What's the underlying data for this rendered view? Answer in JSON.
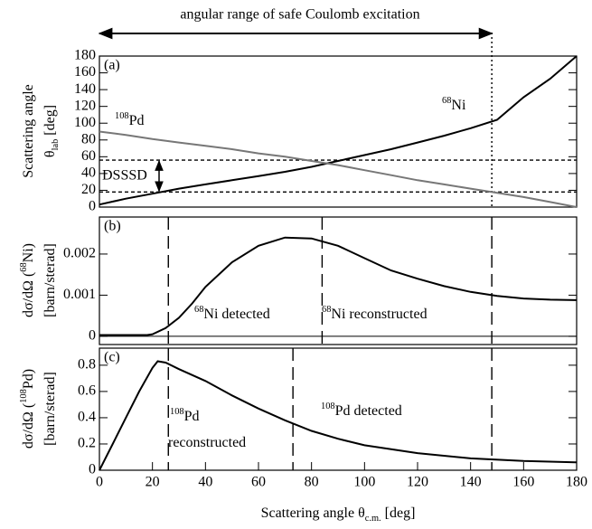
{
  "chart_data": [
    {
      "type": "line",
      "range_label": "angular range of safe Coulomb excitation",
      "range_arrow": [
        0,
        148
      ],
      "panel_label": "(a)",
      "ylabel": [
        [
          {
            "text": "Scattering angle"
          }
        ],
        [
          {
            "text": "θ"
          },
          {
            "text": "lab",
            "script": "sub"
          },
          {
            "text": " [deg]"
          }
        ]
      ],
      "xlim": [
        0,
        180
      ],
      "ylim": [
        0,
        180
      ],
      "yticks": [
        0,
        20,
        40,
        60,
        80,
        100,
        120,
        140,
        160,
        180
      ],
      "x": [
        0,
        10,
        20,
        30,
        40,
        50,
        60,
        70,
        80,
        90,
        100,
        110,
        120,
        130,
        140,
        150,
        160,
        170,
        180
      ],
      "series": [
        {
          "name": [
            {
              "text": "68",
              "script": "sup"
            },
            {
              "text": "Ni"
            }
          ],
          "color": "#000000",
          "values": [
            3,
            10,
            16,
            22,
            27,
            32,
            37,
            42,
            48,
            55,
            62,
            69,
            77,
            85,
            94,
            104,
            131,
            153,
            180
          ]
        },
        {
          "name": [
            {
              "text": "108",
              "script": "sup"
            },
            {
              "text": "Pd"
            }
          ],
          "color": "#777777",
          "values": [
            90,
            86,
            81,
            77,
            73,
            69,
            64,
            60,
            55,
            50,
            44,
            38,
            32,
            27,
            22,
            17,
            12,
            6,
            0
          ]
        }
      ],
      "hlines": [
        18,
        56
      ],
      "vlines": [
        148
      ],
      "detector_label": "DSSSD"
    },
    {
      "type": "line",
      "panel_label": "(b)",
      "ylabel": [
        [
          {
            "text": "dσ/dΩ ("
          },
          {
            "text": "68",
            "script": "sup"
          },
          {
            "text": "Ni)"
          }
        ],
        [
          {
            "text": "[barn/sterad]"
          }
        ]
      ],
      "xlim": [
        0,
        180
      ],
      "ylim": [
        -0.0002,
        0.0029
      ],
      "yticks": [
        0,
        0.001,
        0.002
      ],
      "x": [
        0,
        10,
        18,
        20,
        25,
        30,
        35,
        40,
        50,
        60,
        70,
        80,
        90,
        100,
        110,
        120,
        130,
        140,
        150,
        160,
        170,
        180
      ],
      "series": [
        {
          "color": "#000000",
          "values": [
            3e-05,
            3e-05,
            3e-05,
            5e-05,
            0.0002,
            0.00045,
            0.0008,
            0.0012,
            0.0018,
            0.0022,
            0.0024,
            0.00238,
            0.0022,
            0.0019,
            0.0016,
            0.0014,
            0.00122,
            0.00108,
            0.00098,
            0.00092,
            0.00089,
            0.00088
          ]
        }
      ],
      "vlines": [
        26,
        84,
        148
      ],
      "region_labels": [
        [
          {
            "text": "68",
            "script": "sup"
          },
          {
            "text": "Ni detected"
          }
        ],
        [
          {
            "text": "68",
            "script": "sup"
          },
          {
            "text": "Ni reconstructed"
          }
        ]
      ]
    },
    {
      "type": "line",
      "panel_label": "(c)",
      "ylabel": [
        [
          {
            "text": "dσ/dΩ ("
          },
          {
            "text": "108",
            "script": "sup"
          },
          {
            "text": "Pd)"
          }
        ],
        [
          {
            "text": "[barn/sterad]"
          }
        ]
      ],
      "xlabel": [
        {
          "text": "Scattering angle θ"
        },
        {
          "text": "c.m.",
          "script": "sub"
        },
        {
          "text": " [deg]"
        }
      ],
      "xlim": [
        0,
        180
      ],
      "ylim": [
        0,
        0.93
      ],
      "yticks": [
        0,
        0.2,
        0.4,
        0.6,
        0.8
      ],
      "xticks": [
        0,
        20,
        40,
        60,
        80,
        100,
        120,
        140,
        160,
        180
      ],
      "x": [
        0,
        5,
        10,
        15,
        20,
        22,
        25,
        30,
        40,
        50,
        60,
        70,
        80,
        90,
        100,
        120,
        140,
        160,
        180
      ],
      "series": [
        {
          "color": "#000000",
          "values": [
            0,
            0.2,
            0.4,
            0.6,
            0.78,
            0.83,
            0.82,
            0.77,
            0.68,
            0.57,
            0.47,
            0.38,
            0.3,
            0.24,
            0.19,
            0.13,
            0.09,
            0.07,
            0.06
          ]
        }
      ],
      "vlines": [
        26,
        73,
        148
      ],
      "region_labels": [
        [
          {
            "text": "108",
            "script": "sup"
          },
          {
            "text": "Pd"
          }
        ],
        [
          {
            "text": "reconstructed"
          }
        ],
        [
          {
            "text": "108",
            "script": "sup"
          },
          {
            "text": "Pd detected"
          }
        ]
      ]
    }
  ]
}
